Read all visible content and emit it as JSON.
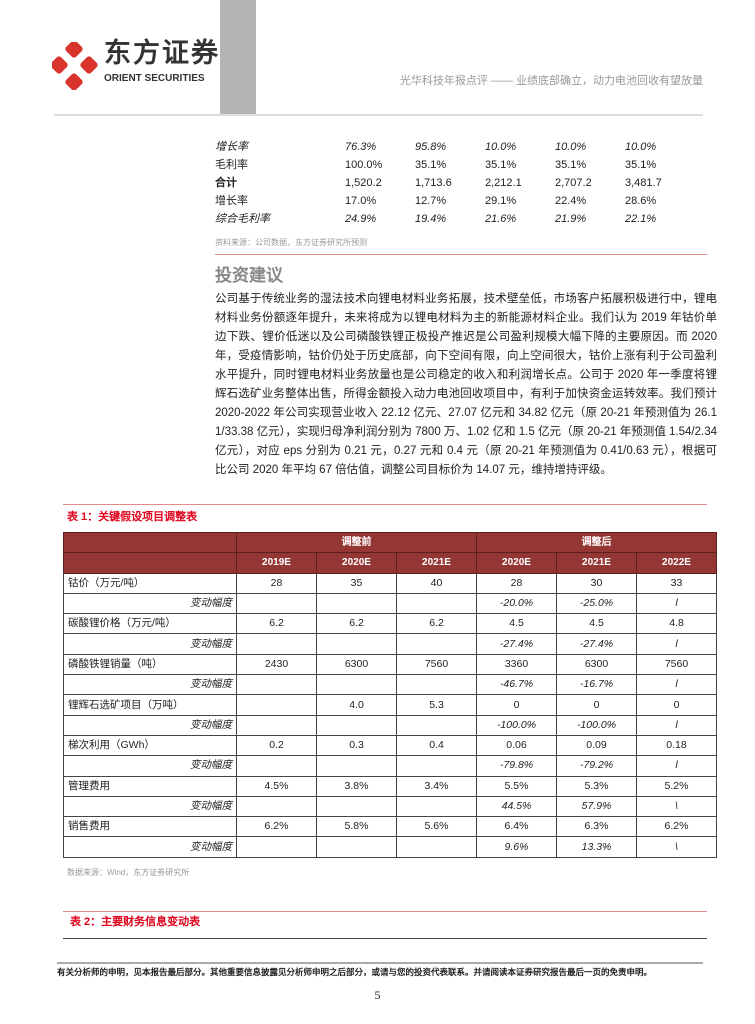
{
  "header": {
    "brand_cn": "东方证券",
    "brand_en": "ORIENT SECURITIES",
    "report_title": "光华科技年报点评 —— 业绩底部确立，动力电池回收有望放量",
    "accent": "#d9342b"
  },
  "top_table": {
    "rows": [
      {
        "label": "增长率",
        "values": [
          "76.3%",
          "95.8%",
          "10.0%",
          "10.0%",
          "10.0%"
        ],
        "style": "italic"
      },
      {
        "label": "毛利率",
        "values": [
          "100.0%",
          "35.1%",
          "35.1%",
          "35.1%",
          "35.1%"
        ],
        "style": "normal"
      },
      {
        "label": "合计",
        "values": [
          "1,520.2",
          "1,713.6",
          "2,212.1",
          "2,707.2",
          "3,481.7"
        ],
        "style": "bold-label"
      },
      {
        "label": "增长率",
        "values": [
          "17.0%",
          "12.7%",
          "29.1%",
          "22.4%",
          "28.6%"
        ],
        "style": "normal"
      },
      {
        "label": "综合毛利率",
        "values": [
          "24.9%",
          "19.4%",
          "21.6%",
          "21.9%",
          "22.1%"
        ],
        "style": "italic"
      }
    ],
    "source": "资料来源：公司数据，东方证券研究所预测"
  },
  "section": {
    "heading": "投资建议",
    "paragraph": "公司基于传统业务的湿法技术向锂电材料业务拓展，技术壁垒低，市场客户拓展积极进行中，锂电材料业务份额逐年提升，未来将成为以锂电材料为主的新能源材料企业。我们认为 2019 年钴价单边下跌、锂价低迷以及公司磷酸铁锂正极投产推迟是公司盈利规模大幅下降的主要原因。而 2020 年，受疫情影响，钴价仍处于历史底部，向下空间有限，向上空间很大，钴价上涨有利于公司盈利水平提升，同时锂电材料业务放量也是公司稳定的收入和利润增长点。公司于 2020 年一季度将锂辉石选矿业务整体出售，所得金额投入动力电池回收项目中，有利于加快资金运转效率。我们预计 2020-2022 年公司实现营业收入 22.12 亿元、27.07 亿元和 34.82 亿元（原 20-21 年预测值为 26.11/33.38 亿元），实现归母净利润分别为 7800 万、1.02 亿和 1.5 亿元（原 20-21 年预测值 1.54/2.34 亿元），对应 eps 分别为 0.21 元，0.27 元和 0.4 元（原 20-21 年预测值为 0.41/0.63 元），根据可比公司 2020 年平均 67 倍估值，调整公司目标价为 14.07 元，维持增持评级。"
  },
  "table1": {
    "title": "表 1：关键假设项目调整表",
    "group_before": "调整前",
    "group_after": "调整后",
    "header_color": "#943634",
    "years": [
      "2019E",
      "2020E",
      "2021E",
      "2020E",
      "2021E",
      "2022E"
    ],
    "rows": [
      {
        "label": "钴价（万元/吨）",
        "values": [
          "28",
          "35",
          "40",
          "28",
          "30",
          "33"
        ]
      },
      {
        "label": "变动幅度",
        "values": [
          "",
          "",
          "",
          "-20.0%",
          "-25.0%",
          "l"
        ],
        "sub": true
      },
      {
        "label": "碳酸锂价格（万元/吨）",
        "values": [
          "6.2",
          "6.2",
          "6.2",
          "4.5",
          "4.5",
          "4.8"
        ]
      },
      {
        "label": "变动幅度",
        "values": [
          "",
          "",
          "",
          "-27.4%",
          "-27.4%",
          "l"
        ],
        "sub": true
      },
      {
        "label": "磷酸铁锂销量（吨）",
        "values": [
          "2430",
          "6300",
          "7560",
          "3360",
          "6300",
          "7560"
        ]
      },
      {
        "label": "变动幅度",
        "values": [
          "",
          "",
          "",
          "-46.7%",
          "-16.7%",
          "l"
        ],
        "sub": true
      },
      {
        "label": "锂辉石选矿项目（万吨）",
        "values": [
          "",
          "4.0",
          "5.3",
          "0",
          "0",
          "0"
        ]
      },
      {
        "label": "变动幅度",
        "values": [
          "",
          "",
          "",
          "-100.0%",
          "-100.0%",
          "l"
        ],
        "sub": true
      },
      {
        "label": "梯次利用（GWh）",
        "values": [
          "0.2",
          "0.3",
          "0.4",
          "0.06",
          "0.09",
          "0.18"
        ]
      },
      {
        "label": "变动幅度",
        "values": [
          "",
          "",
          "",
          "-79.8%",
          "-79.2%",
          "l"
        ],
        "sub": true
      },
      {
        "label": "管理费用",
        "values": [
          "4.5%",
          "3.8%",
          "3.4%",
          "5.5%",
          "5.3%",
          "5.2%"
        ]
      },
      {
        "label": "变动幅度",
        "values": [
          "",
          "",
          "",
          "44.5%",
          "57.9%",
          "\\"
        ],
        "sub": true
      },
      {
        "label": "销售费用",
        "values": [
          "6.2%",
          "5.8%",
          "5.6%",
          "6.4%",
          "6.3%",
          "6.2%"
        ]
      },
      {
        "label": "变动幅度",
        "values": [
          "",
          "",
          "",
          "9.6%",
          "13.3%",
          "\\"
        ],
        "sub": true
      }
    ],
    "source": "数据来源：Wind，东方证券研究所"
  },
  "table2": {
    "title": "表 2：主要财务信息变动表"
  },
  "footer": {
    "disclaimer": "有关分析师的申明，见本报告最后部分。其他重要信息披露见分析师申明之后部分，或请与您的投资代表联系。并请阅读本证券研究报告最后一页的免责申明。",
    "page_number": "5"
  }
}
